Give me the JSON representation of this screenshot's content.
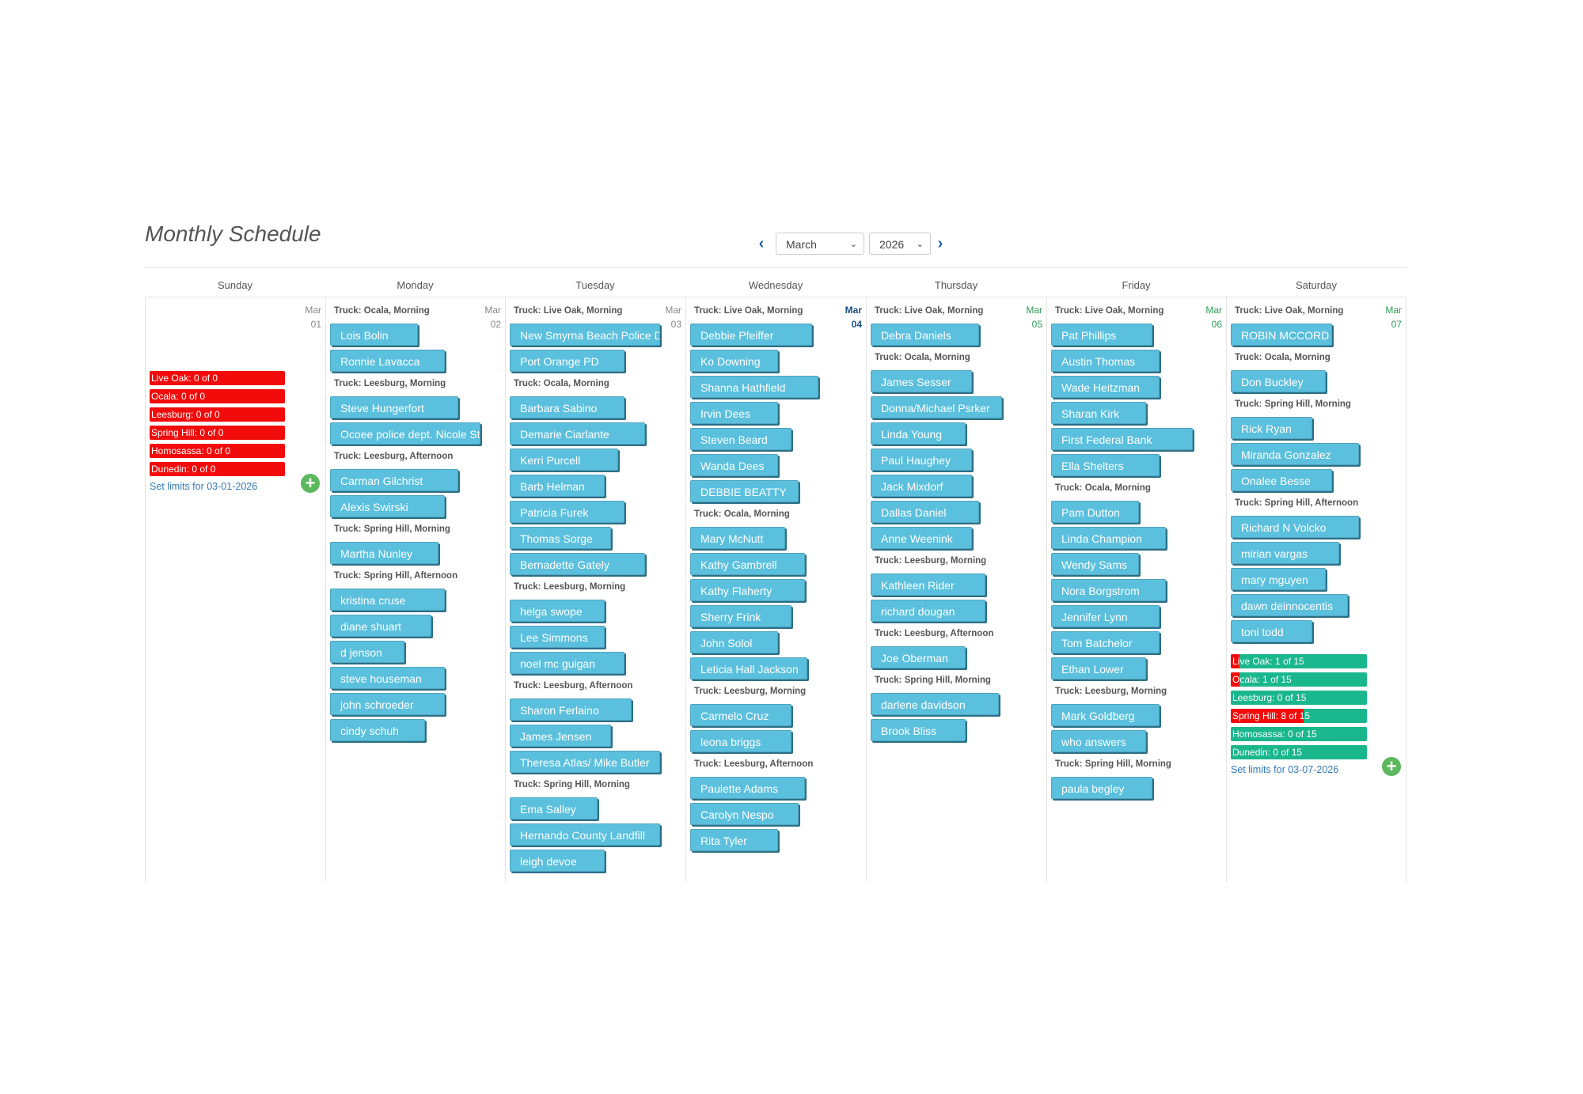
{
  "page": {
    "title": "Monthly Schedule"
  },
  "nav": {
    "prev_icon": "chevron-left-icon",
    "next_icon": "chevron-right-icon",
    "month": "March",
    "year": "2026"
  },
  "colors": {
    "chip": "#5bc0de",
    "limit_red": "#f20b0b",
    "limit_green": "#1bb78c",
    "add_green": "#5cb85c",
    "link_blue": "#337ab7"
  },
  "days": [
    {
      "name": "Sunday",
      "date_month": "Mar",
      "date_day": "01",
      "status": "past",
      "groups": [],
      "limits": [
        {
          "label": "Live Oak: 0 of 0",
          "fill": 1,
          "color": "red"
        },
        {
          "label": "Ocala: 0 of 0",
          "fill": 1,
          "color": "red"
        },
        {
          "label": "Leesburg: 0 of 0",
          "fill": 1,
          "color": "red"
        },
        {
          "label": "Spring Hill: 0 of 0",
          "fill": 1,
          "color": "red"
        },
        {
          "label": "Homosassa: 0 of 0",
          "fill": 1,
          "color": "red"
        },
        {
          "label": "Dunedin: 0 of 0",
          "fill": 1,
          "color": "red"
        }
      ],
      "set_limits": "Set limits for 03-01-2026"
    },
    {
      "name": "Monday",
      "date_month": "Mar",
      "date_day": "02",
      "status": "past",
      "groups": [
        {
          "truck": "Truck: Ocala, Morning",
          "people": [
            "Lois Bolin",
            "Ronnie Lavacca"
          ]
        },
        {
          "truck": "Truck: Leesburg, Morning",
          "people": [
            "Steve Hungerfort",
            "Ocoee police dept. Nicole St"
          ]
        },
        {
          "truck": "Truck: Leesburg, Afternoon",
          "people": [
            "Carman Gilchrist",
            "Alexis Swirski"
          ]
        },
        {
          "truck": "Truck: Spring Hill, Morning",
          "people": [
            "Martha Nunley"
          ]
        },
        {
          "truck": "Truck: Spring Hill, Afternoon",
          "people": [
            "kristina cruse",
            "diane shuart",
            "d jenson",
            "steve houseman",
            "john schroeder",
            "cindy schuh"
          ]
        }
      ]
    },
    {
      "name": "Tuesday",
      "date_month": "Mar",
      "date_day": "03",
      "status": "past",
      "groups": [
        {
          "truck": "Truck: Live Oak, Morning",
          "people": [
            "New Smyrna Beach Police D",
            "Port Orange PD"
          ]
        },
        {
          "truck": "Truck: Ocala, Morning",
          "people": [
            "Barbara Sabino",
            "Demarie Ciarlante",
            "Kerri Purcell",
            "Barb Helman",
            "Patricia Furek",
            "Thomas Sorge",
            "Bernadette Gately"
          ]
        },
        {
          "truck": "Truck: Leesburg, Morning",
          "people": [
            "helga swope",
            "Lee Simmons",
            "noel mc guigan"
          ]
        },
        {
          "truck": "Truck: Leesburg, Afternoon",
          "people": [
            "Sharon Ferlaino",
            "James Jensen",
            "Theresa Atlas/ Mike Butler"
          ]
        },
        {
          "truck": "Truck: Spring Hill, Morning",
          "people": [
            "Ema Salley",
            "Hernando County Landfill",
            "leigh devoe"
          ]
        }
      ]
    },
    {
      "name": "Wednesday",
      "date_month": "Mar",
      "date_day": "04",
      "status": "today",
      "groups": [
        {
          "truck": "Truck: Live Oak, Morning",
          "people": [
            "Debbie Pfeiffer",
            "Ko Downing",
            "Shanna Hathfield",
            "Irvin Dees",
            "Steven Beard",
            "Wanda Dees",
            "DEBBIE BEATTY"
          ]
        },
        {
          "truck": "Truck: Ocala, Morning",
          "people": [
            "Mary McNutt",
            "Kathy Gambrell",
            "Kathy Flaherty",
            "Sherry Frink",
            "John Solol",
            "Leticia Hall Jackson"
          ]
        },
        {
          "truck": "Truck: Leesburg, Morning",
          "people": [
            "Carmelo Cruz",
            "leona briggs"
          ]
        },
        {
          "truck": "Truck: Leesburg, Afternoon",
          "people": [
            "Paulette Adams",
            "Carolyn Nespo",
            "Rita Tyler"
          ]
        }
      ]
    },
    {
      "name": "Thursday",
      "date_month": "Mar",
      "date_day": "05",
      "status": "future",
      "groups": [
        {
          "truck": "Truck: Live Oak, Morning",
          "people": [
            "Debra Daniels"
          ]
        },
        {
          "truck": "Truck: Ocala, Morning",
          "people": [
            "James Sesser",
            "Donna/Michael Psrker",
            "Linda Young",
            "Paul Haughey",
            "Jack Mixdorf",
            "Dallas Daniel",
            "Anne Weenink"
          ]
        },
        {
          "truck": "Truck: Leesburg, Morning",
          "people": [
            "Kathleen Rider",
            "richard dougan"
          ]
        },
        {
          "truck": "Truck: Leesburg, Afternoon",
          "people": [
            "Joe Oberman"
          ]
        },
        {
          "truck": "Truck: Spring Hill, Morning",
          "people": [
            "darlene davidson",
            "Brook Bliss"
          ]
        }
      ]
    },
    {
      "name": "Friday",
      "date_month": "Mar",
      "date_day": "06",
      "status": "future",
      "groups": [
        {
          "truck": "Truck: Live Oak, Morning",
          "people": [
            "Pat Phillips",
            "Austin Thomas",
            "Wade Heitzman",
            "Sharan Kirk",
            "First Federal Bank",
            "Ella Shelters"
          ]
        },
        {
          "truck": "Truck: Ocala, Morning",
          "people": [
            "Pam Dutton",
            "Linda Champion",
            "Wendy Sams",
            "Nora Borgstrom",
            "Jennifer Lynn",
            "Tom Batchelor",
            "Ethan Lower"
          ]
        },
        {
          "truck": "Truck: Leesburg, Morning",
          "people": [
            "Mark Goldberg",
            "who answers"
          ]
        },
        {
          "truck": "Truck: Spring Hill, Morning",
          "people": [
            "paula begley"
          ]
        }
      ]
    },
    {
      "name": "Saturday",
      "date_month": "Mar",
      "date_day": "07",
      "status": "future",
      "groups": [
        {
          "truck": "Truck: Live Oak, Morning",
          "people": [
            "ROBIN MCCORD"
          ]
        },
        {
          "truck": "Truck: Ocala, Morning",
          "people": [
            "Don Buckley"
          ]
        },
        {
          "truck": "Truck: Spring Hill, Morning",
          "people": [
            "Rick Ryan",
            "Miranda Gonzalez",
            "Onalee Besse"
          ]
        },
        {
          "truck": "Truck: Spring Hill, Afternoon",
          "people": [
            "Richard N Volcko",
            "mirian vargas",
            "mary mguyen",
            "dawn deinnocentis",
            "toni todd"
          ]
        }
      ],
      "limits": [
        {
          "label": "Live Oak: 1 of 15",
          "fill": 0.0667,
          "color": "green"
        },
        {
          "label": "Ocala: 1 of 15",
          "fill": 0.0667,
          "color": "green"
        },
        {
          "label": "Leesburg: 0 of 15",
          "fill": 0,
          "color": "green"
        },
        {
          "label": "Spring Hill: 8 of 15",
          "fill": 0.5333,
          "color": "green"
        },
        {
          "label": "Homosassa: 0 of 15",
          "fill": 0,
          "color": "green"
        },
        {
          "label": "Dunedin: 0 of 15",
          "fill": 0,
          "color": "green"
        }
      ],
      "set_limits": "Set limits for 03-07-2026"
    }
  ]
}
